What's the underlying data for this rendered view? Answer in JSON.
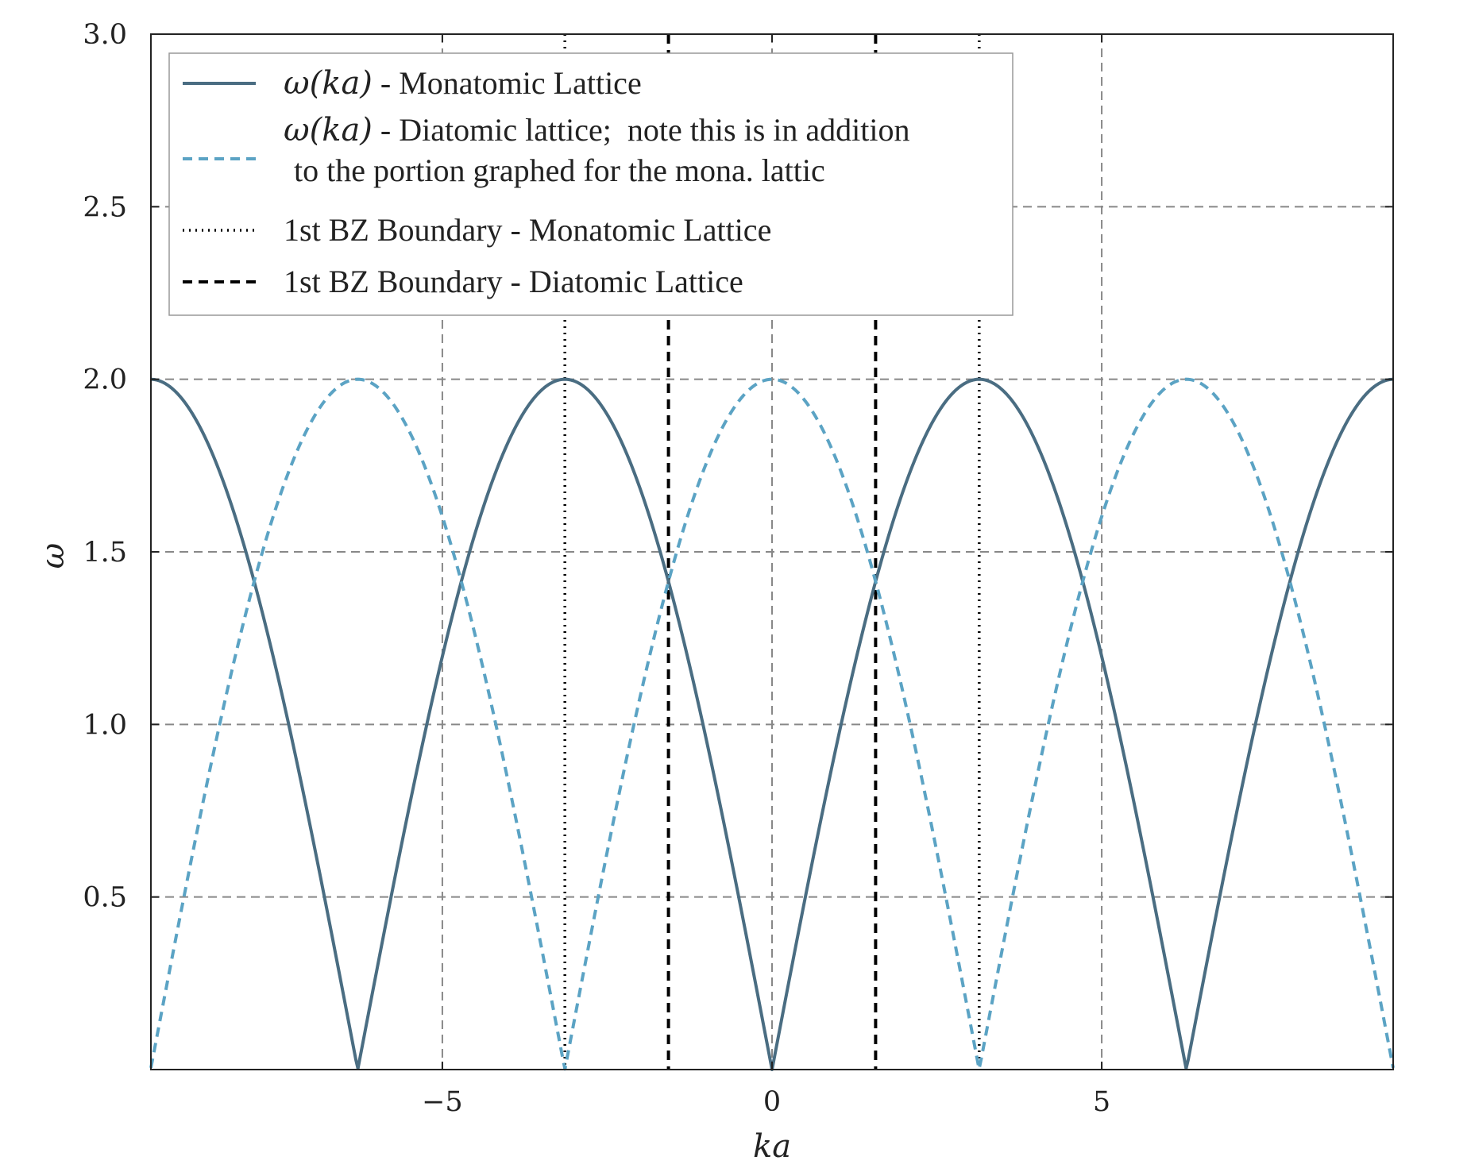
{
  "chart_data": {
    "type": "line",
    "title": "",
    "xlabel": "ka",
    "ylabel": "ω",
    "xlim": [
      -9.42,
      9.42
    ],
    "ylim": [
      0,
      3.0
    ],
    "xticks": [
      -5,
      0,
      5
    ],
    "xtick_labels": [
      "−5",
      "0",
      "5"
    ],
    "yticks": [
      0.5,
      1.0,
      1.5,
      2.0,
      2.5,
      3.0
    ],
    "ytick_labels": [
      "0.5",
      "1.0",
      "1.5",
      "2.0",
      "2.5",
      "3.0"
    ],
    "grid": true,
    "legend_position": "top-left",
    "series": [
      {
        "name": "ω(ka)  - Monatomic Lattice",
        "name_math": "ω(ka)",
        "name_text": " - Monatomic Lattice",
        "style": "solid",
        "color": "#4a6d82",
        "formula": "2|sin(ka/2)|",
        "x": [
          -9.42,
          -8.5,
          -7.85,
          -7.0,
          -6.28,
          -5.5,
          -4.71,
          -4.0,
          -3.14,
          -2.5,
          -1.57,
          -0.8,
          0,
          0.8,
          1.57,
          2.5,
          3.14,
          4.0,
          4.71,
          5.5,
          6.28,
          7.0,
          7.85,
          8.5,
          9.42
        ],
        "y": [
          2.0,
          1.8,
          1.41,
          0.7,
          0.0,
          0.77,
          1.41,
          1.82,
          2.0,
          1.9,
          1.41,
          0.78,
          0.0,
          0.78,
          1.41,
          1.9,
          2.0,
          1.82,
          1.41,
          0.77,
          0.0,
          0.7,
          1.41,
          1.8,
          2.0
        ]
      },
      {
        "name": "ω(ka)  - Diatomic lattice;  note this is in addition to the portion graphed for the mona. lattic",
        "name_math": "ω(ka)",
        "name_text": " - Diatomic lattice;  note this is in addition",
        "name_text_line2": "to the portion graphed for the mona. lattic",
        "style": "dashed",
        "color": "#5ba3c4",
        "formula": "2|cos(ka/2)|",
        "x": [
          -9.42,
          -8.5,
          -7.85,
          -7.0,
          -6.28,
          -5.5,
          -4.71,
          -4.0,
          -3.14,
          -2.5,
          -1.57,
          -0.8,
          0,
          0.8,
          1.57,
          2.5,
          3.14,
          4.0,
          4.71,
          5.5,
          6.28,
          7.0,
          7.85,
          8.5,
          9.42
        ],
        "y": [
          0.0,
          0.89,
          1.41,
          1.87,
          2.0,
          1.84,
          1.41,
          0.83,
          0.0,
          0.63,
          1.41,
          1.84,
          2.0,
          1.84,
          1.41,
          0.63,
          0.0,
          0.83,
          1.41,
          1.84,
          2.0,
          1.87,
          1.41,
          0.89,
          0.0
        ]
      }
    ],
    "vlines": [
      {
        "name": "1st BZ Boundary - Monatomic Lattice",
        "style": "dashdot",
        "color": "#000000",
        "x": [
          -3.1416,
          3.1416
        ]
      },
      {
        "name": "1st BZ Boundary - Diatomic Lattice",
        "style": "dashed",
        "color": "#000000",
        "x": [
          -1.5708,
          1.5708
        ]
      }
    ]
  }
}
